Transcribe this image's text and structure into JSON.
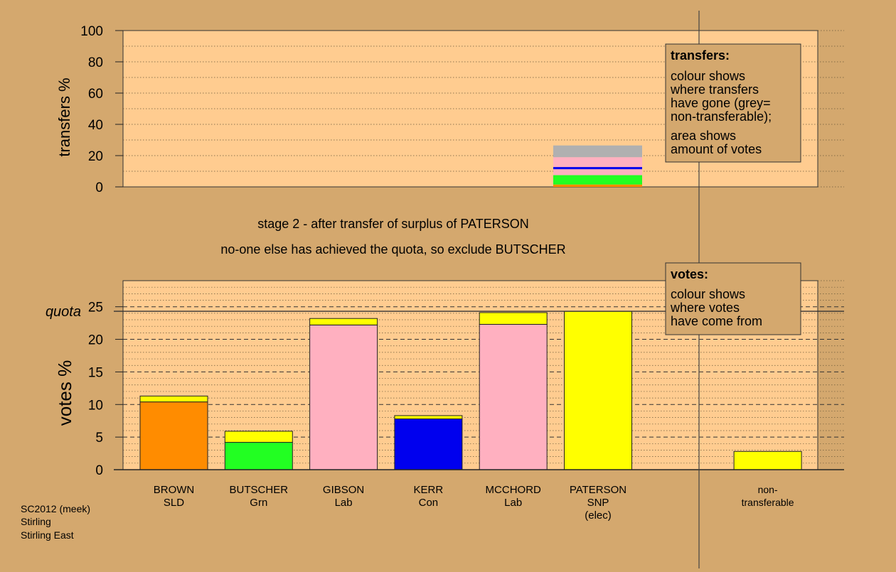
{
  "colors": {
    "background": "#d4a86e",
    "panel": "#ffcc90",
    "orange": "#ff8c00",
    "green": "#22ff22",
    "pink": "#ffb0c0",
    "blue": "#0000ee",
    "yellow": "#ffff00",
    "grey": "#b0b0b0"
  },
  "stage_title": "stage 2 - after transfer of surplus of PATERSON",
  "stage_note": "no-one else has achieved the quota, so exclude BUTSCHER",
  "footer": [
    "SC2012 (meek)",
    "Stirling",
    "Stirling East"
  ],
  "transfers_legend": {
    "title": "transfers:",
    "lines_a": [
      "colour shows",
      "where transfers",
      "have gone (grey=",
      "non-transferable);"
    ],
    "lines_b": [
      "area shows",
      "amount of votes"
    ]
  },
  "votes_legend": {
    "title": "votes:",
    "lines": [
      "colour shows",
      "where votes",
      "have come from"
    ]
  },
  "chart_data": [
    {
      "type": "bar",
      "name": "transfers",
      "ylabel": "transfers %",
      "ylim": [
        0,
        100
      ],
      "yticks": [
        0,
        20,
        40,
        60,
        80,
        100
      ],
      "grid": "dotted",
      "bar_position": "PATERSON",
      "stack": [
        {
          "color": "orange",
          "value": 1.5
        },
        {
          "color": "green",
          "value": 6.0
        },
        {
          "color": "pink",
          "value": 3.8
        },
        {
          "color": "blue",
          "value": 1.4
        },
        {
          "color": "pink",
          "value": 6.3
        },
        {
          "color": "grey",
          "value": 7.5
        }
      ]
    },
    {
      "type": "bar",
      "name": "votes",
      "ylabel": "votes %",
      "ylim": [
        0,
        29
      ],
      "yticks": [
        0,
        5,
        10,
        15,
        20,
        25
      ],
      "quota": {
        "label": "quota",
        "value": 24.3
      },
      "grid": "dashed",
      "categories": [
        {
          "lines": [
            "BROWN",
            "SLD"
          ],
          "segments": [
            {
              "color": "orange",
              "value": 10.4
            },
            {
              "color": "yellow",
              "value": 0.9
            }
          ]
        },
        {
          "lines": [
            "BUTSCHER",
            "Grn"
          ],
          "segments": [
            {
              "color": "green",
              "value": 4.2
            },
            {
              "color": "yellow",
              "value": 1.7
            }
          ]
        },
        {
          "lines": [
            "GIBSON",
            "Lab"
          ],
          "segments": [
            {
              "color": "pink",
              "value": 22.2
            },
            {
              "color": "yellow",
              "value": 1.0
            }
          ]
        },
        {
          "lines": [
            "KERR",
            "Con"
          ],
          "segments": [
            {
              "color": "blue",
              "value": 7.8
            },
            {
              "color": "yellow",
              "value": 0.5
            }
          ]
        },
        {
          "lines": [
            "MCCHORD",
            "Lab"
          ],
          "segments": [
            {
              "color": "pink",
              "value": 22.3
            },
            {
              "color": "yellow",
              "value": 1.8
            }
          ]
        },
        {
          "lines": [
            "PATERSON",
            "SNP",
            "(elec)"
          ],
          "segments": [
            {
              "color": "yellow",
              "value": 24.3
            }
          ]
        },
        {
          "lines": [
            "non-",
            "transferable"
          ],
          "segments": [
            {
              "color": "yellow",
              "value": 2.8
            }
          ],
          "gap_before": true
        }
      ]
    }
  ]
}
